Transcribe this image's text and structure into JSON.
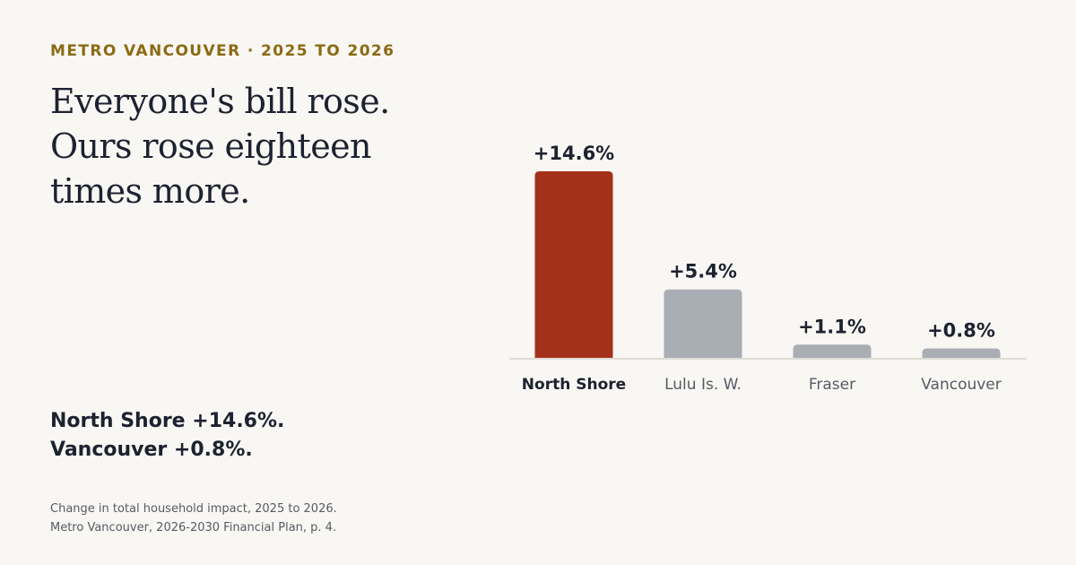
{
  "eyebrow": "METRO VANCOUVER · 2025 TO 2026",
  "headline": {
    "line1": "Everyone's bill rose.",
    "line2": "Ours rose eighteen",
    "line3": "times more."
  },
  "summary": {
    "line1": "North Shore +14.6%.",
    "line2": "Vancouver +0.8%."
  },
  "footnote": {
    "line1": "Change in total household impact, 2025 to 2026.",
    "line2": "Metro Vancouver, 2026-2030 Financial Plan, p. 4."
  },
  "colors": {
    "highlight": "#a3311a",
    "muted": "#a9aeb4",
    "baseline": "#dedbd5",
    "eyebrow": "#8b6a14"
  },
  "chart_data": {
    "type": "bar",
    "categories": [
      "North Shore",
      "Lulu Is. W.",
      "Fraser",
      "Vancouver"
    ],
    "values": [
      14.6,
      5.4,
      1.1,
      0.8
    ],
    "value_labels": [
      "+14.6%",
      "+5.4%",
      "+1.1%",
      "+0.8%"
    ],
    "highlight_index": 0,
    "title": "",
    "xlabel": "",
    "ylabel": "",
    "ylim": [
      0,
      14.6
    ],
    "grid": false
  }
}
